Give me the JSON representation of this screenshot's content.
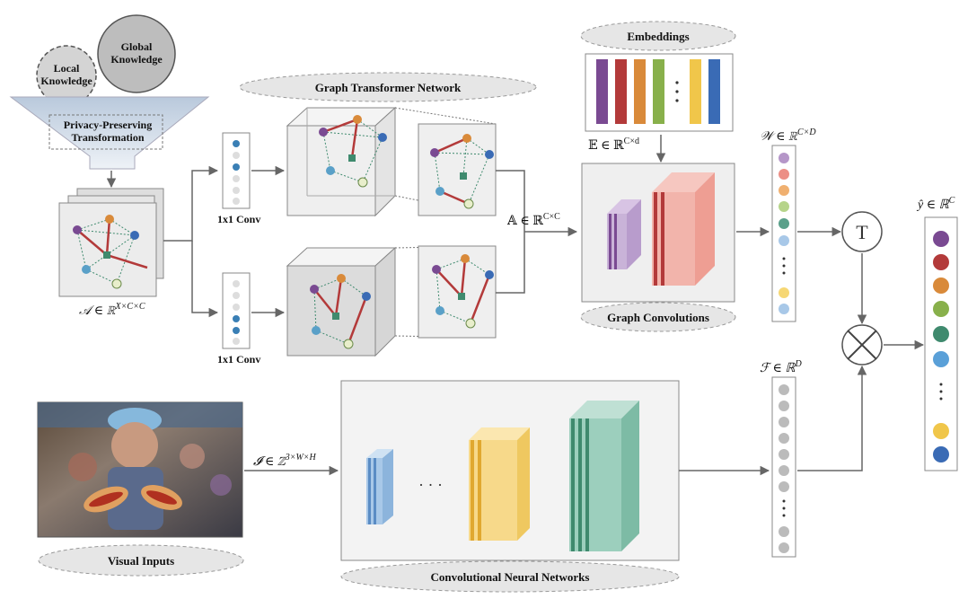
{
  "knowledge": {
    "local": "Local Knowledge",
    "global": "Global Knowledge",
    "privacy": "Privacy-Preserving Transformation"
  },
  "labels": {
    "graph_transformer": "Graph Transformer Network",
    "conv_1x1_top": "1x1 Conv",
    "conv_1x1_bottom": "1x1 Conv",
    "adjacency": "𝒜 ∈ ℝ",
    "adjacency_sup": "X×C×C",
    "adj_out": "𝔸 ∈ ℝ",
    "adj_out_sup": "C×C",
    "embeddings": "Embeddings",
    "embed_dim": "𝔼 ∈ ℝ",
    "embed_dim_sup": "C×d",
    "graph_convolutions": "Graph Convolutions",
    "W": "𝒲 ∈ ℝ",
    "W_sup": "C×D",
    "F": "ℱ ∈ ℝ",
    "F_sup": "D",
    "yhat": "ŷ ∈ ℝ",
    "yhat_sup": "C",
    "image_dim": "𝓘 ∈ ℤ",
    "image_dim_sup": "3×W×H",
    "visual_inputs": "Visual Inputs",
    "cnn": "Convolutional Neural Networks",
    "transpose": "T",
    "ellipsis": "· · ·"
  },
  "colors": {
    "purple": "#7a4a92",
    "red": "#b33a3a",
    "orange": "#d98a3a",
    "green": "#88b04b",
    "teal": "#3f8a6e",
    "blue": "#3a6bb5",
    "yellow": "#f0c64a",
    "lightblue": "#a8c8e8",
    "pill": "#e6e6e6"
  }
}
